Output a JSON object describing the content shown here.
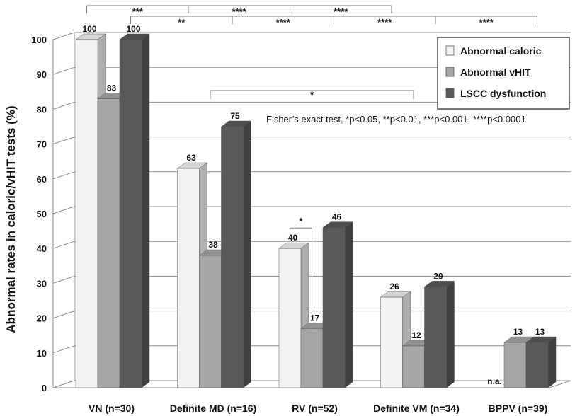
{
  "chart_data": {
    "type": "bar",
    "title": "",
    "xlabel": "",
    "ylabel": "Abnormal rates in caloric/vHIT tests (%)",
    "ylim": [
      0,
      100
    ],
    "yticks": [
      "0",
      "10",
      "20",
      "30",
      "40",
      "50",
      "60",
      "70",
      "80",
      "90",
      "100"
    ],
    "categories": [
      "VN (n=30)",
      "Definite MD (n=16)",
      "RV (n=52)",
      "Definite VM (n=34)",
      "BPPV (n=39)"
    ],
    "series": [
      {
        "name": "Abnormal caloric",
        "color": "#f2f2f2",
        "values": [
          100,
          63,
          40,
          26,
          null
        ],
        "labels": [
          "100",
          "63",
          "40",
          "26",
          "n.a."
        ]
      },
      {
        "name": "Abnormal vHIT",
        "color": "#a6a6a6",
        "values": [
          83,
          38,
          17,
          12,
          13
        ],
        "labels": [
          "83",
          "38",
          "17",
          "12",
          "13"
        ]
      },
      {
        "name": "LSCC dysfunction",
        "color": "#595959",
        "values": [
          100,
          75,
          46,
          29,
          13
        ],
        "labels": [
          "100",
          "75",
          "46",
          "29",
          "13"
        ]
      }
    ],
    "annotations": {
      "test_note": "Fisher’s exact test, *p<0.05, **p<0.01, ***p<0.001, ****p<0.0001",
      "brackets": [
        {
          "from": [
            0,
            0
          ],
          "to": [
            1,
            0
          ],
          "label": "***"
        },
        {
          "from": [
            1,
            0
          ],
          "to": [
            2,
            0
          ],
          "label": "****"
        },
        {
          "from": [
            2,
            0
          ],
          "to": [
            3,
            0
          ],
          "label": "****"
        },
        {
          "from": [
            0,
            2
          ],
          "to": [
            1,
            2
          ],
          "label": "**"
        },
        {
          "from": [
            1,
            2
          ],
          "to": [
            2,
            2
          ],
          "label": "****"
        },
        {
          "from": [
            2,
            2
          ],
          "to": [
            3,
            2
          ],
          "label": "****"
        },
        {
          "from": [
            3,
            2
          ],
          "to": [
            4,
            2
          ],
          "label": "****"
        },
        {
          "from": [
            1,
            1
          ],
          "to": [
            3,
            1
          ],
          "label": "*"
        },
        {
          "from": [
            2,
            0
          ],
          "to": [
            2,
            1
          ],
          "label": "*"
        }
      ]
    },
    "legend_position": "top-right"
  }
}
